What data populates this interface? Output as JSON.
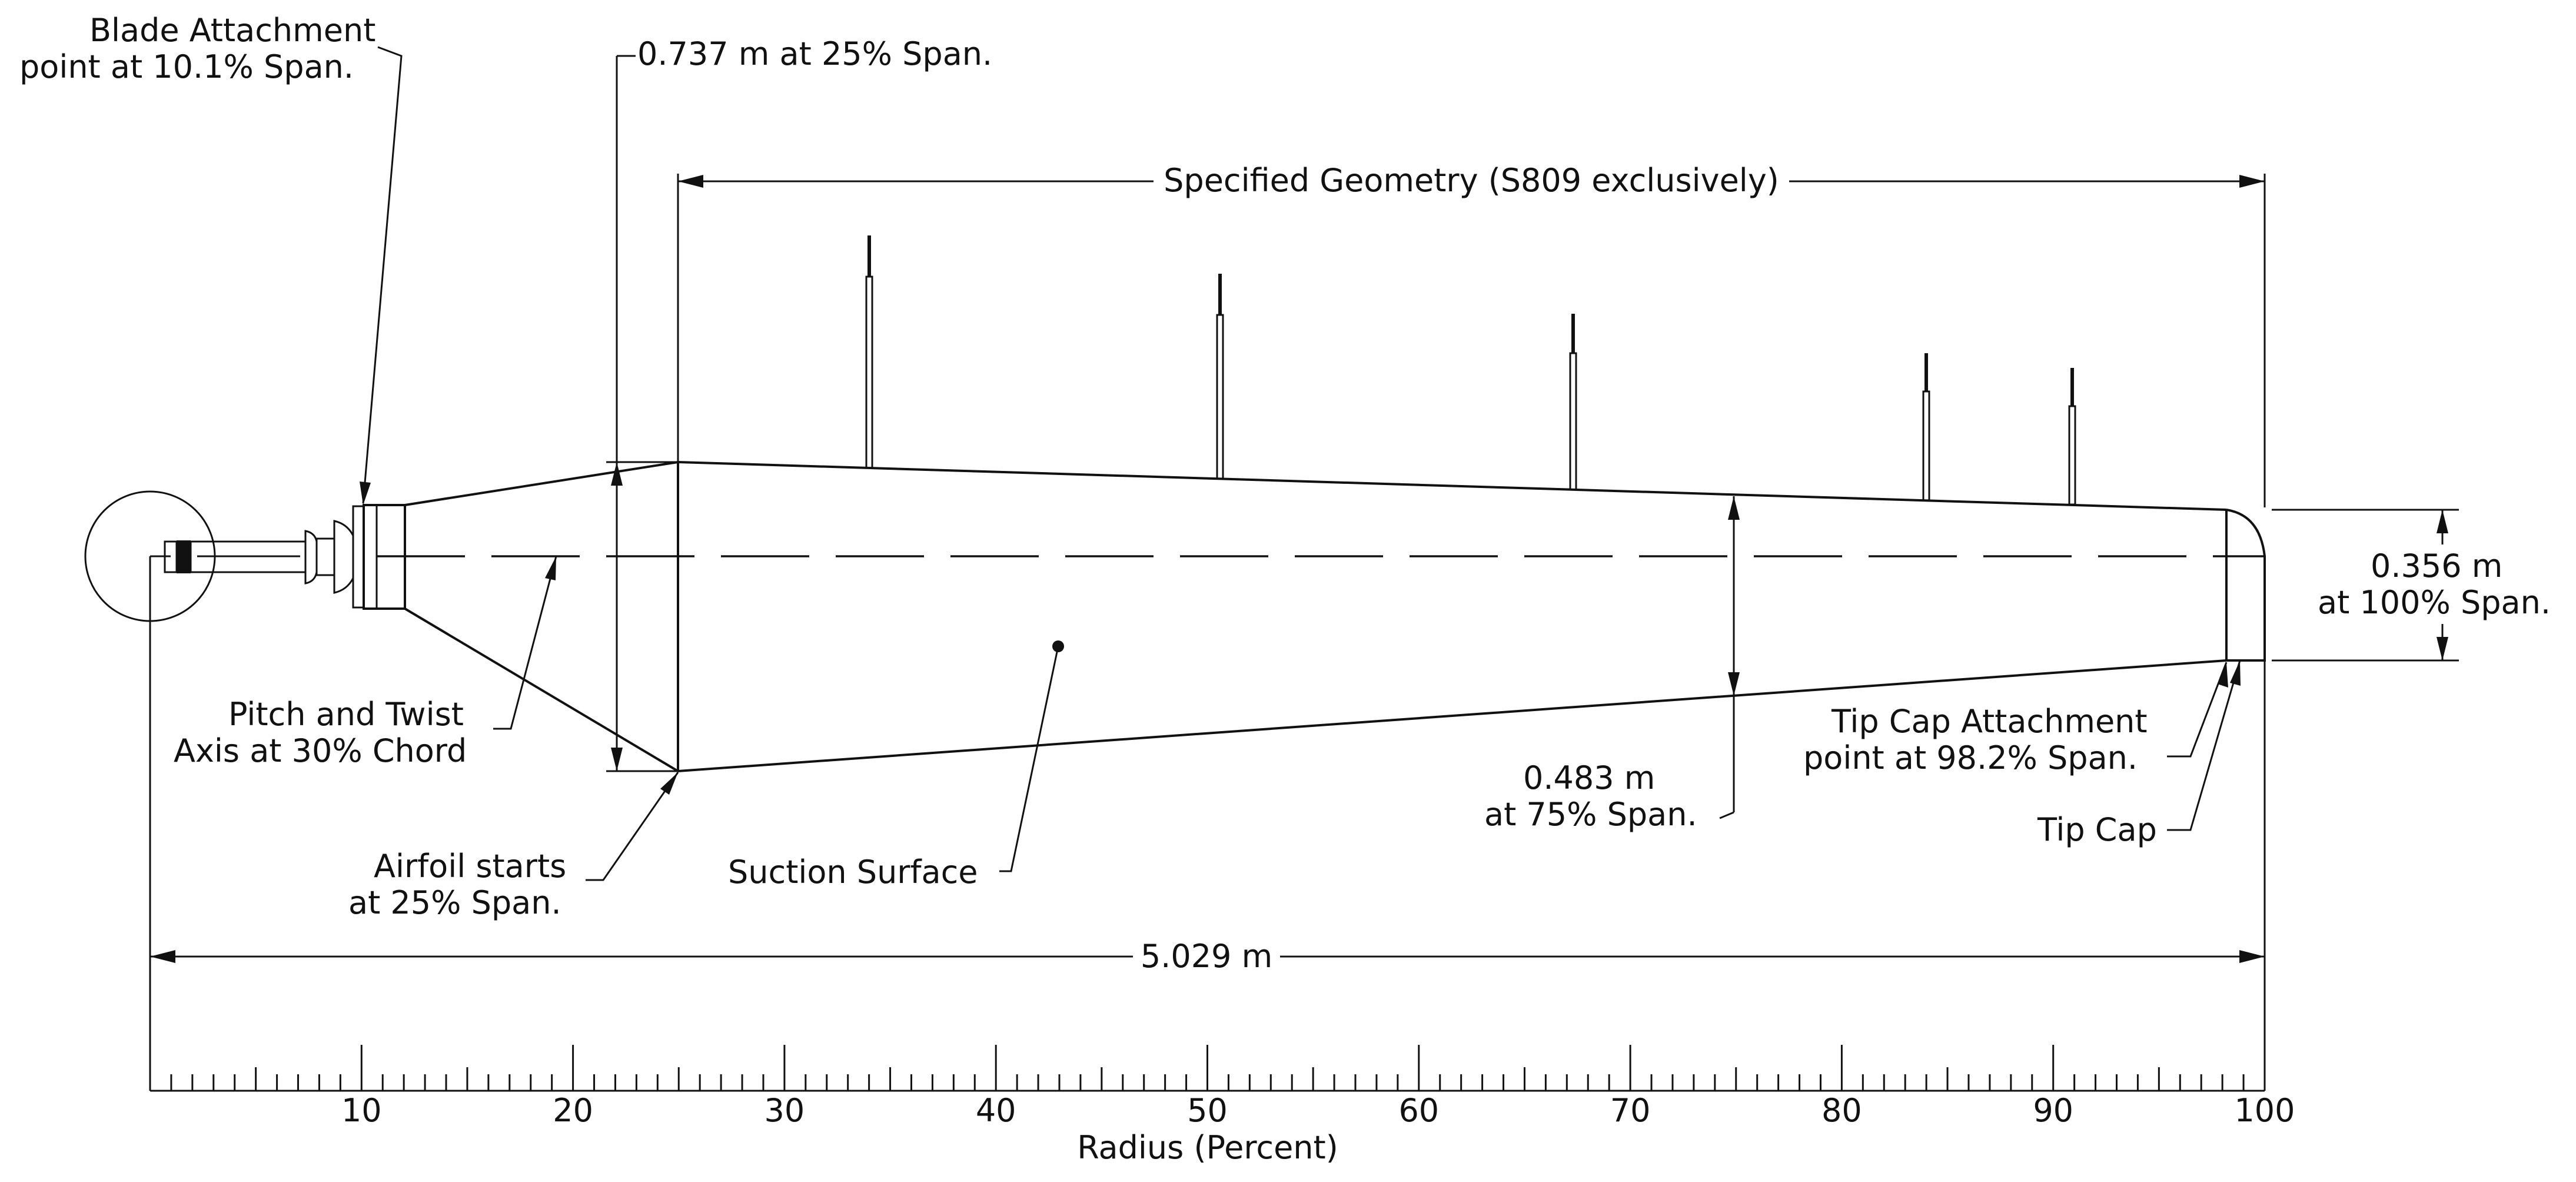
{
  "labels": {
    "blade_attachment": [
      "Blade Attachment",
      "point at 10.1% Span."
    ],
    "chord_25": "0.737  m  at  25%  Span.",
    "specified_geometry": "Specified  Geometry  (S809  exclusively)",
    "pitch_axis": [
      "Pitch  and  Twist",
      "Axis  at  30%  Chord"
    ],
    "airfoil_starts": [
      "Airfoil  starts",
      "at  25%  Span."
    ],
    "suction_surface": "Suction  Surface",
    "chord_75": [
      "0.483  m",
      "at  75%  Span."
    ],
    "tip_cap_attachment": [
      "Tip  Cap  Attachment",
      "point  at  98.2%  Span."
    ],
    "tip_cap": "Tip  Cap",
    "chord_100": [
      "0.356  m",
      "at  100%  Span."
    ],
    "overall_length": "5.029  m"
  },
  "axis": {
    "title": "Radius  (Percent)",
    "min": 0,
    "max": 100,
    "major_step": 10,
    "minor_step": 1,
    "tick_labels": [
      "10",
      "20",
      "30",
      "40",
      "50",
      "60",
      "70",
      "80",
      "90",
      "100"
    ]
  },
  "blade": {
    "span_length_m": 5.029,
    "hub_attachment_percent": 10.1,
    "airfoil_start_percent": 25,
    "tip_cap_percent": 98.2,
    "pitch_axis_chord_percent": 30,
    "chord_25_m": 0.737,
    "chord_75_m": 0.483,
    "chord_100_m": 0.356,
    "pressure_tap_stations_percent": [
      34,
      51,
      67,
      84,
      91
    ]
  }
}
